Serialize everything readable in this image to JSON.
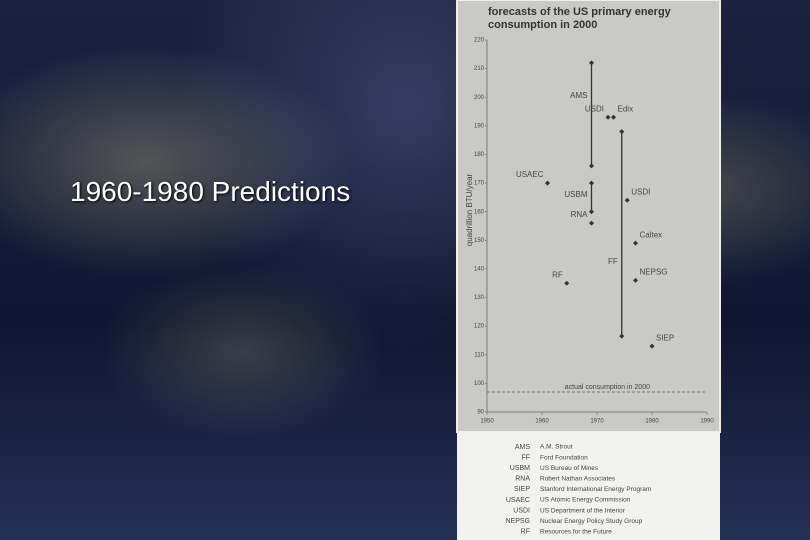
{
  "slide_title": "1960-1980 Predictions",
  "chart_data": {
    "type": "scatter",
    "title": "forecasts of the US primary energy consumption in 2000",
    "ylabel": "quadrillion BTU/year",
    "xlim": [
      1950,
      1990
    ],
    "xticks": [
      1950,
      1960,
      1970,
      1980,
      1990
    ],
    "ylim": [
      90,
      220
    ],
    "yticks": [
      90,
      100,
      110,
      120,
      130,
      140,
      150,
      160,
      170,
      180,
      190,
      200,
      210,
      220
    ],
    "color": "#333333",
    "points": {
      "labels": [
        "USAEC",
        "USDI",
        "Edix",
        "RNA",
        "USDI",
        "Caltex",
        "NEPSG",
        "RF",
        "SIEP"
      ],
      "x": [
        1961,
        1972,
        1973,
        1969,
        1975.5,
        1977,
        1977,
        1964.5,
        1980
      ],
      "values": [
        170,
        193,
        193,
        156,
        164,
        149,
        136,
        135,
        113
      ]
    },
    "ranges": {
      "labels": [
        "AMS",
        "FF",
        "USBM"
      ],
      "x": [
        1969,
        1974.5,
        1969
      ],
      "low": [
        176,
        116.5,
        160
      ],
      "high": [
        212,
        188,
        170
      ]
    },
    "reference": {
      "label": "actual consumption in 2000",
      "value": 97
    }
  },
  "legend": [
    {
      "abbr": "AMS",
      "name": "A.M. Strout"
    },
    {
      "abbr": "FF",
      "name": "Ford Foundation"
    },
    {
      "abbr": "USBM",
      "name": "US Bureau of Mines"
    },
    {
      "abbr": "RNA",
      "name": "Robert Nathan Associates"
    },
    {
      "abbr": "SIEP",
      "name": "Stanford International Energy Program"
    },
    {
      "abbr": "USAEC",
      "name": "US Atomic Energy Commission"
    },
    {
      "abbr": "USDI",
      "name": "US Department of the Interior"
    },
    {
      "abbr": "NEPSG",
      "name": "Nuclear Energy Policy Study Group"
    },
    {
      "abbr": "RF",
      "name": "Resources for the Future"
    }
  ]
}
